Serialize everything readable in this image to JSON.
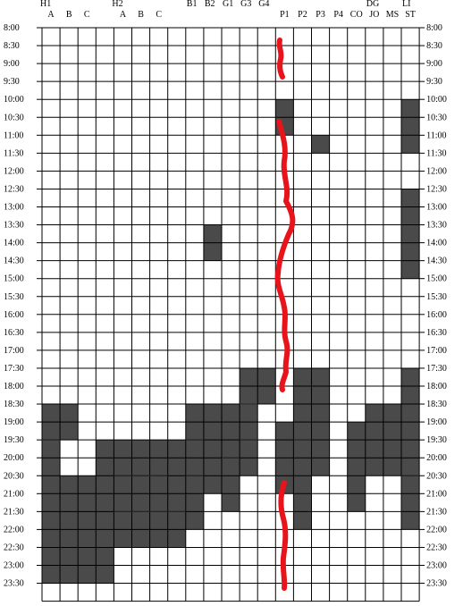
{
  "chart_data": {
    "type": "heatmap",
    "colors": {
      "filled": "#4a4a4a",
      "empty": "#ffffff",
      "grid": "#000000",
      "marker": "#e8141c"
    },
    "group_labels": [
      "H1",
      "H2",
      "B1",
      "B2",
      "G1",
      "G3",
      "G4",
      "DG",
      "LI"
    ],
    "columns": [
      "A",
      "B",
      "C",
      "",
      "A",
      "B",
      "C",
      "",
      "",
      "",
      "",
      "",
      "",
      "P1",
      "P2",
      "P3",
      "P4",
      "CO",
      "JO",
      "MS",
      "ST"
    ],
    "top_labels": [
      "H1",
      "",
      "",
      "",
      "H2",
      "",
      "",
      "",
      "B1",
      "B2",
      "G1",
      "G3",
      "G4",
      "",
      "",
      "",
      "",
      "",
      "DG",
      "",
      "LI"
    ],
    "sub_labels": [
      "A",
      "B",
      "C",
      "",
      "A",
      "B",
      "C",
      "",
      "",
      "",
      "",
      "",
      "",
      "P1",
      "P2",
      "P3",
      "P4",
      "CO",
      "JO",
      "MS",
      "ST"
    ],
    "rows": [
      "8:00",
      "8:30",
      "9:00",
      "9:30",
      "10:00",
      "10:30",
      "11:00",
      "11:30",
      "12:00",
      "12:30",
      "13:00",
      "13:30",
      "14:00",
      "14:30",
      "15:00",
      "15:30",
      "16:00",
      "16:30",
      "17:00",
      "17:30",
      "18:00",
      "18:30",
      "19:00",
      "19:30",
      "20:00",
      "20:30",
      "21:00",
      "21:30",
      "22:00",
      "22:30",
      "23:00",
      "23:30"
    ],
    "occupied": [
      {
        "col": 0,
        "from": 21,
        "to": 30,
        "breaks": [
          23
        ]
      },
      {
        "col": 1,
        "from": 21,
        "to": 22
      },
      {
        "col": 1,
        "from": 25,
        "to": 30
      },
      {
        "col": 2,
        "from": 25,
        "to": 30
      },
      {
        "col": 3,
        "from": 23,
        "to": 30
      },
      {
        "col": 4,
        "from": 23,
        "to": 28,
        "breaks": [
          25,
          27
        ]
      },
      {
        "col": 5,
        "from": 23,
        "to": 28,
        "breaks": [
          25,
          27
        ]
      },
      {
        "col": 6,
        "from": 23,
        "to": 28,
        "breaks": [
          25,
          27
        ]
      },
      {
        "col": 7,
        "from": 23,
        "to": 28,
        "breaks": [
          27
        ]
      },
      {
        "col": 8,
        "from": 21,
        "to": 27,
        "breaks": [
          23,
          25
        ]
      },
      {
        "col": 9,
        "from": 11,
        "to": 12
      },
      {
        "col": 9,
        "from": 21,
        "to": 25
      },
      {
        "col": 10,
        "from": 21,
        "to": 26,
        "breaks": [
          24
        ]
      },
      {
        "col": 11,
        "from": 19,
        "to": 24,
        "breaks": [
          21,
          23
        ]
      },
      {
        "col": 12,
        "from": 19,
        "to": 20
      },
      {
        "col": 13,
        "from": 4,
        "to": 5
      },
      {
        "col": 13,
        "from": 22,
        "to": 25
      },
      {
        "col": 14,
        "from": 19,
        "to": 27,
        "breaks": [
          23
        ]
      },
      {
        "col": 15,
        "from": 6,
        "to": 6
      },
      {
        "col": 15,
        "from": 19,
        "to": 24
      },
      {
        "col": 17,
        "from": 22,
        "to": 26
      },
      {
        "col": 18,
        "from": 21,
        "to": 24
      },
      {
        "col": 19,
        "from": 21,
        "to": 24
      },
      {
        "col": 20,
        "from": 4,
        "to": 6
      },
      {
        "col": 20,
        "from": 9,
        "to": 13
      },
      {
        "col": 20,
        "from": 19,
        "to": 27,
        "breaks": [
          25
        ]
      }
    ]
  }
}
